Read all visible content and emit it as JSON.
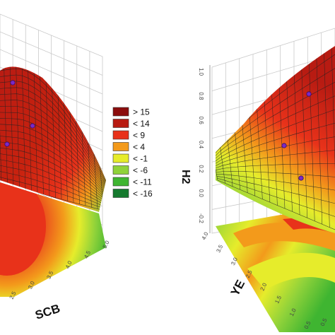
{
  "chart_data": [
    {
      "type": "surface",
      "title": "",
      "xlabel": "SCB",
      "zlabel": "",
      "x_ticks": [
        "2.5",
        "3.0",
        "3.5",
        "4.0",
        "4.5",
        "5.0"
      ],
      "grid": true,
      "markers": 3
    },
    {
      "type": "surface",
      "title": "",
      "xlabel": "YE",
      "zlabel": "H2",
      "x_ticks": [
        "0.5",
        "1.0",
        "1.5",
        "2.0",
        "2.5",
        "3.0",
        "3.5",
        "4.0"
      ],
      "y_ticks": [
        "0.5"
      ],
      "z_ticks": [
        "1.0",
        "0.8",
        "0.6",
        "0.4",
        "0.2",
        "0.0",
        "-0.2"
      ],
      "grid": true,
      "markers": 3
    }
  ],
  "legend": {
    "placement": "center",
    "entries": [
      {
        "label": "> 15",
        "color": "#8b0d0d"
      },
      {
        "label": "< 14",
        "color": "#b81b12"
      },
      {
        "label": "< 9",
        "color": "#e8321a"
      },
      {
        "label": "< 4",
        "color": "#f39a1b"
      },
      {
        "label": "< -1",
        "color": "#e6ec2b"
      },
      {
        "label": "< -6",
        "color": "#8fd23a"
      },
      {
        "label": "< -11",
        "color": "#3fb531"
      },
      {
        "label": "< -16",
        "color": "#157a2e"
      }
    ]
  }
}
